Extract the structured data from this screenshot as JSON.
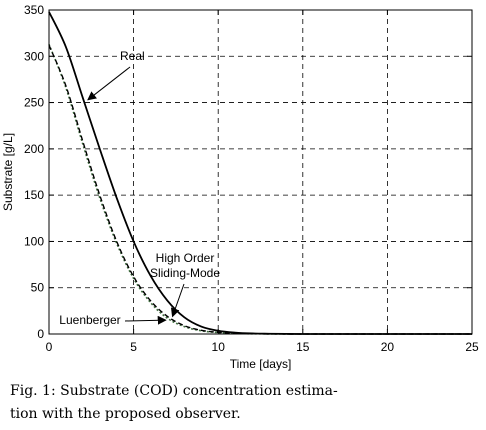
{
  "chart_data": {
    "type": "line",
    "xlabel": "Time [days]",
    "ylabel": "Substrate [g/L]",
    "xlim": [
      0,
      25
    ],
    "ylim": [
      0,
      350
    ],
    "xticks": [
      0,
      5,
      10,
      15,
      20,
      25
    ],
    "yticks": [
      0,
      50,
      100,
      150,
      200,
      250,
      300,
      350
    ],
    "grid": true,
    "series": [
      {
        "name": "Real",
        "style": "solid",
        "color": "#000000",
        "x": [
          0,
          1,
          2,
          3,
          4,
          5,
          6,
          7,
          8,
          9,
          10,
          11,
          12,
          13,
          14,
          15,
          20,
          25
        ],
        "y": [
          348,
          310,
          255,
          200,
          147,
          100,
          63,
          36,
          18,
          8,
          3.5,
          1.5,
          0.6,
          0.3,
          0.1,
          0,
          0,
          0
        ]
      },
      {
        "name": "High Order Sliding-Mode",
        "style": "dashed",
        "color": "#000000",
        "x": [
          0,
          1,
          2,
          3,
          4,
          5,
          6,
          7,
          8,
          9,
          10,
          11,
          12,
          13,
          14,
          15,
          20,
          25
        ],
        "y": [
          312,
          268,
          208,
          150,
          100,
          62,
          36,
          19,
          9,
          4,
          1.8,
          0.8,
          0.3,
          0.1,
          0,
          0,
          0,
          0
        ]
      },
      {
        "name": "Luenberger",
        "style": "dotted",
        "color": "#3f6e3f",
        "x": [
          0,
          1,
          2,
          3,
          4,
          5,
          6,
          7,
          8,
          9,
          10,
          11,
          12,
          13,
          14,
          15,
          20,
          25
        ],
        "y": [
          313,
          266,
          205,
          147,
          98,
          60,
          34,
          17,
          8,
          3.5,
          1.5,
          0.6,
          0.2,
          0.1,
          0,
          0,
          0,
          0
        ]
      }
    ],
    "annotations": [
      {
        "lines": [
          "Real"
        ],
        "target": [
          2.3,
          253
        ]
      },
      {
        "lines": [
          "High Order",
          "Sliding-Mode"
        ],
        "target": [
          7.3,
          19
        ]
      },
      {
        "lines": [
          "Luenberger"
        ],
        "target": [
          6.9,
          15
        ]
      }
    ]
  },
  "caption": {
    "line1": "Fig.   1: Substrate (COD) concentration estima-",
    "line2": "tion with the proposed observer."
  }
}
